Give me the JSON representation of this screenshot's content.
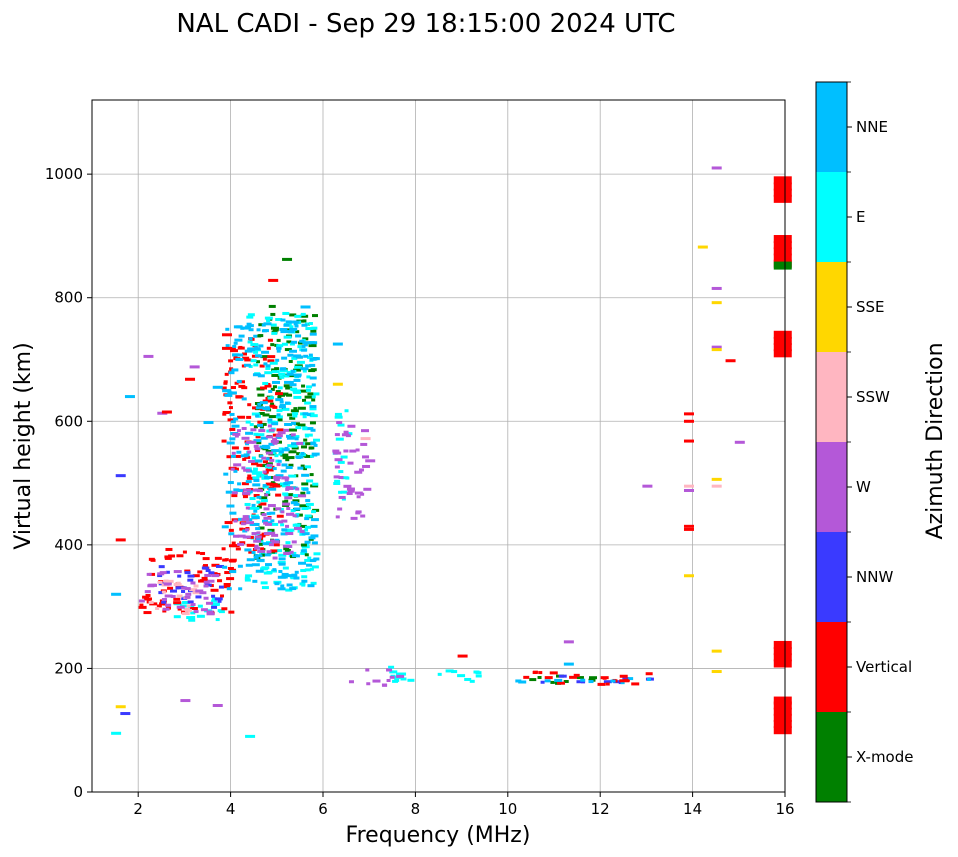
{
  "chart_data": {
    "type": "scatter",
    "title": "NAL CADI - Sep 29 18:15:00 2024 UTC",
    "xlabel": "Frequency (MHz)",
    "ylabel": "Virtual height (km)",
    "xlim": [
      1,
      16
    ],
    "ylim": [
      0,
      1120
    ],
    "xticks": [
      2,
      4,
      6,
      8,
      10,
      12,
      14,
      16
    ],
    "yticks": [
      0,
      200,
      400,
      600,
      800,
      1000
    ],
    "grid": true,
    "colorbar": {
      "label": "Azimuth Direction",
      "categories": [
        "X-mode",
        "Vertical",
        "NNW",
        "W",
        "SSW",
        "SSE",
        "E",
        "NNE"
      ],
      "colors": [
        "#008000",
        "#ff0000",
        "#3a3aff",
        "#b458d8",
        "#ffb6c1",
        "#ffd700",
        "#00ffff",
        "#00bfff"
      ]
    },
    "bands": [
      {
        "category": "E",
        "x0": 4.3,
        "x1": 5.8,
        "y0": 320,
        "y1": 420
      },
      {
        "category": "E",
        "x0": 2.6,
        "x1": 4.0,
        "y0": 280,
        "y1": 330
      },
      {
        "category": "Vertical",
        "x0": 2.0,
        "x1": 4.0,
        "y0": 290,
        "y1": 400
      },
      {
        "category": "NNW",
        "x0": 2.4,
        "x1": 3.8,
        "y0": 300,
        "y1": 370
      },
      {
        "category": "SSW",
        "x0": 2.2,
        "x1": 3.2,
        "y0": 290,
        "y1": 350
      },
      {
        "category": "W",
        "x0": 2.0,
        "x1": 3.6,
        "y0": 290,
        "y1": 360
      },
      {
        "category": "X-mode",
        "x0": 4.5,
        "x1": 5.8,
        "y0": 380,
        "y1": 790
      },
      {
        "category": "Vertical",
        "x0": 3.8,
        "x1": 5.0,
        "y0": 390,
        "y1": 740
      },
      {
        "category": "E",
        "x0": 4.3,
        "x1": 5.8,
        "y0": 420,
        "y1": 780
      },
      {
        "category": "NNE",
        "x0": 3.8,
        "x1": 5.8,
        "y0": 330,
        "y1": 770
      },
      {
        "category": "W",
        "x0": 4.0,
        "x1": 5.5,
        "y0": 380,
        "y1": 600
      },
      {
        "category": "E",
        "x0": 6.2,
        "x1": 6.5,
        "y0": 440,
        "y1": 620
      },
      {
        "category": "W",
        "x0": 6.2,
        "x1": 6.9,
        "y0": 440,
        "y1": 610
      },
      {
        "category": "E",
        "x0": 7.2,
        "x1": 9.4,
        "y0": 178,
        "y1": 205
      },
      {
        "category": "W",
        "x0": 6.4,
        "x1": 7.6,
        "y0": 175,
        "y1": 200
      },
      {
        "category": "X-mode",
        "x0": 10.2,
        "x1": 11.8,
        "y0": 176,
        "y1": 190
      },
      {
        "category": "NNW",
        "x0": 10.5,
        "x1": 13.2,
        "y0": 178,
        "y1": 190
      },
      {
        "category": "Vertical",
        "x0": 10.2,
        "x1": 13.0,
        "y0": 176,
        "y1": 198
      },
      {
        "category": "NNE",
        "x0": 10.0,
        "x1": 13.2,
        "y0": 178,
        "y1": 186
      }
    ],
    "points": [
      {
        "x": 1.5,
        "y": 320,
        "category": "NNE"
      },
      {
        "x": 1.6,
        "y": 408,
        "category": "Vertical"
      },
      {
        "x": 1.6,
        "y": 512,
        "category": "NNW"
      },
      {
        "x": 1.8,
        "y": 640,
        "category": "NNE"
      },
      {
        "x": 1.6,
        "y": 138,
        "category": "SSE"
      },
      {
        "x": 1.7,
        "y": 127,
        "category": "NNW"
      },
      {
        "x": 1.5,
        "y": 95,
        "category": "E"
      },
      {
        "x": 2.2,
        "y": 705,
        "category": "W"
      },
      {
        "x": 2.5,
        "y": 613,
        "category": "W"
      },
      {
        "x": 2.6,
        "y": 615,
        "category": "Vertical"
      },
      {
        "x": 3.1,
        "y": 668,
        "category": "Vertical"
      },
      {
        "x": 3.2,
        "y": 688,
        "category": "W"
      },
      {
        "x": 3.5,
        "y": 598,
        "category": "NNE"
      },
      {
        "x": 3.7,
        "y": 655,
        "category": "NNE"
      },
      {
        "x": 3.9,
        "y": 718,
        "category": "Vertical"
      },
      {
        "x": 3.9,
        "y": 740,
        "category": "Vertical"
      },
      {
        "x": 3.0,
        "y": 148,
        "category": "W"
      },
      {
        "x": 3.7,
        "y": 140,
        "category": "W"
      },
      {
        "x": 4.4,
        "y": 90,
        "category": "E"
      },
      {
        "x": 4.9,
        "y": 828,
        "category": "Vertical"
      },
      {
        "x": 5.2,
        "y": 862,
        "category": "X-mode"
      },
      {
        "x": 5.6,
        "y": 785,
        "category": "NNE"
      },
      {
        "x": 6.3,
        "y": 725,
        "category": "NNE"
      },
      {
        "x": 6.3,
        "y": 660,
        "category": "SSE"
      },
      {
        "x": 6.9,
        "y": 572,
        "category": "SSW"
      },
      {
        "x": 7.0,
        "y": 536,
        "category": "W"
      },
      {
        "x": 9.0,
        "y": 220,
        "category": "Vertical"
      },
      {
        "x": 11.3,
        "y": 243,
        "category": "W"
      },
      {
        "x": 11.3,
        "y": 207,
        "category": "NNE"
      },
      {
        "x": 12.5,
        "y": 180,
        "category": "Vertical"
      },
      {
        "x": 13.0,
        "y": 495,
        "category": "W"
      },
      {
        "x": 13.9,
        "y": 350,
        "category": "SSE"
      },
      {
        "x": 13.9,
        "y": 430,
        "category": "Vertical"
      },
      {
        "x": 13.9,
        "y": 425,
        "category": "Vertical"
      },
      {
        "x": 13.9,
        "y": 488,
        "category": "W"
      },
      {
        "x": 13.9,
        "y": 495,
        "category": "SSW"
      },
      {
        "x": 13.9,
        "y": 568,
        "category": "Vertical"
      },
      {
        "x": 13.9,
        "y": 600,
        "category": "Vertical"
      },
      {
        "x": 13.9,
        "y": 612,
        "category": "Vertical"
      },
      {
        "x": 14.2,
        "y": 882,
        "category": "SSE"
      },
      {
        "x": 14.5,
        "y": 1010,
        "category": "W"
      },
      {
        "x": 14.5,
        "y": 815,
        "category": "W"
      },
      {
        "x": 14.5,
        "y": 792,
        "category": "SSE"
      },
      {
        "x": 14.5,
        "y": 720,
        "category": "W"
      },
      {
        "x": 14.5,
        "y": 716,
        "category": "SSE"
      },
      {
        "x": 14.8,
        "y": 698,
        "category": "Vertical"
      },
      {
        "x": 15.0,
        "y": 566,
        "category": "W"
      },
      {
        "x": 14.5,
        "y": 506,
        "category": "SSE"
      },
      {
        "x": 14.5,
        "y": 495,
        "category": "SSW"
      },
      {
        "x": 14.5,
        "y": 228,
        "category": "SSE"
      },
      {
        "x": 14.5,
        "y": 195,
        "category": "SSE"
      }
    ],
    "stacks": [
      {
        "x": 15.8,
        "category": "Vertical",
        "heights": [
          960,
          970,
          980,
          990
        ]
      },
      {
        "x": 15.8,
        "category": "Vertical",
        "heights": [
          855,
          865,
          875,
          885,
          895
        ]
      },
      {
        "x": 15.8,
        "category": "X-mode",
        "heights": [
          852
        ]
      },
      {
        "x": 15.8,
        "category": "Vertical",
        "heights": [
          710,
          720,
          730,
          740
        ]
      },
      {
        "x": 15.8,
        "category": "Vertical",
        "heights": [
          208,
          218,
          228,
          238
        ]
      },
      {
        "x": 15.8,
        "category": "Vertical",
        "heights": [
          100,
          110,
          120,
          130,
          140,
          148
        ]
      }
    ]
  }
}
